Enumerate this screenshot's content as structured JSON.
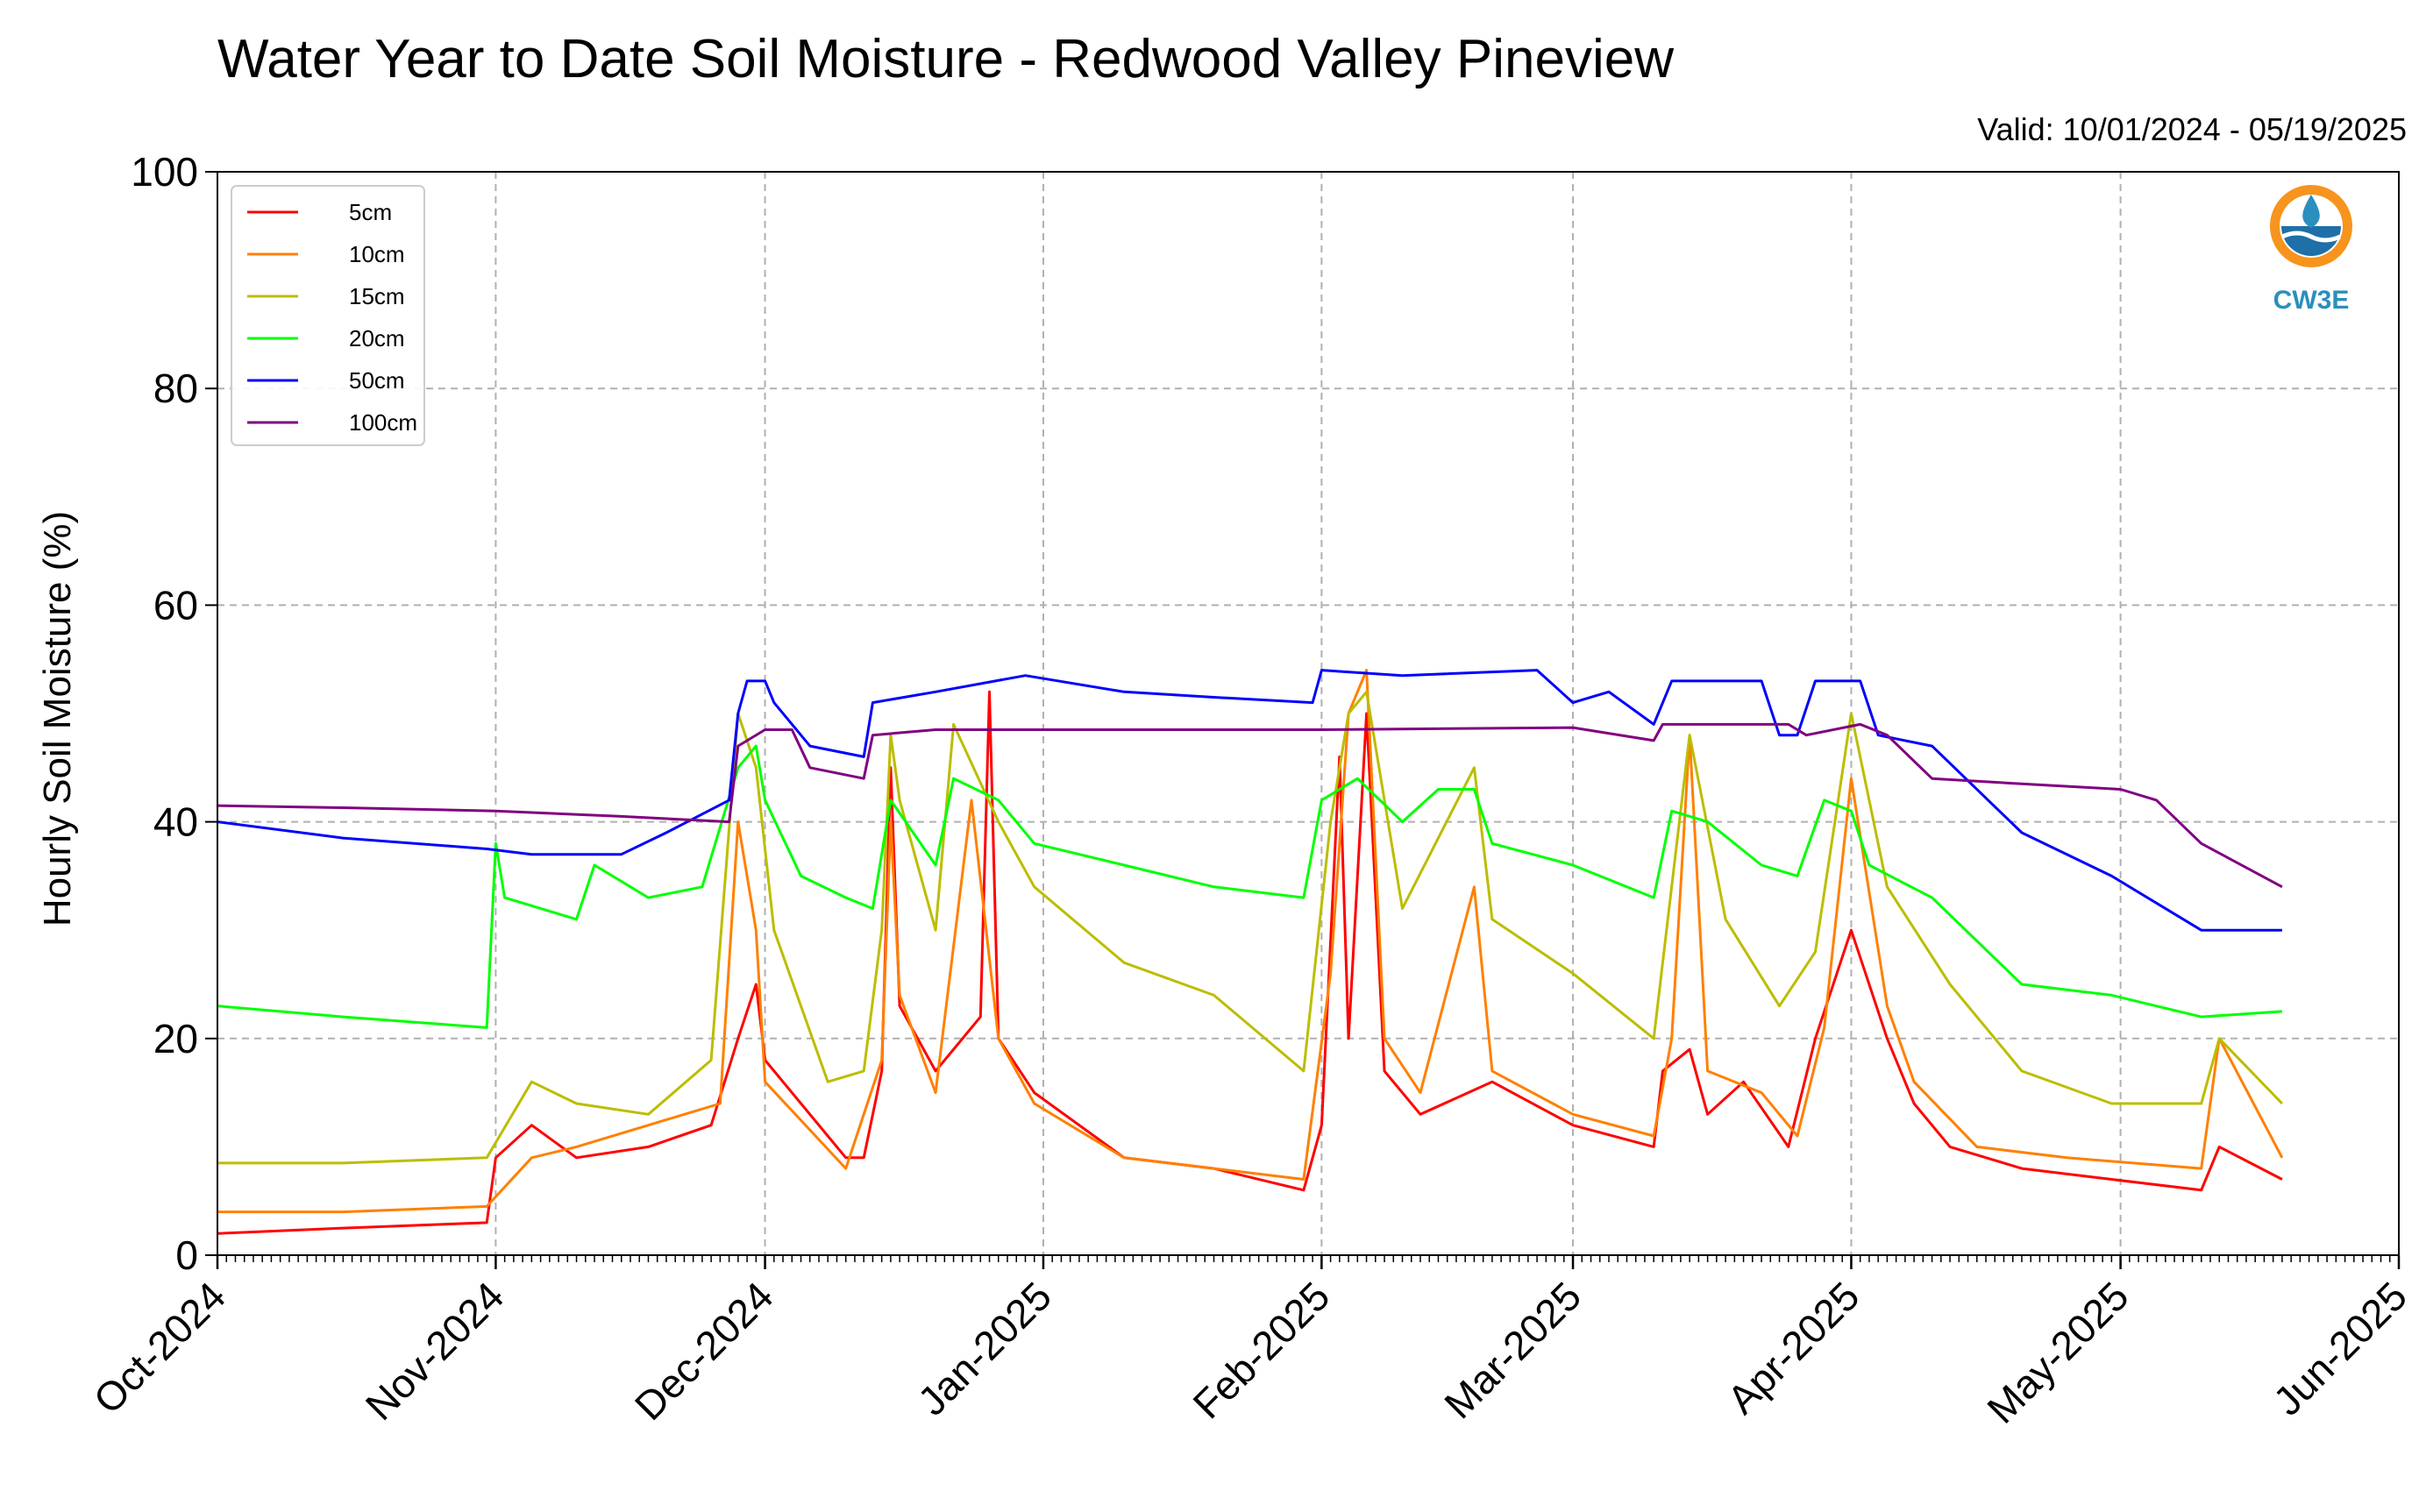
{
  "chart_data": {
    "type": "line",
    "title": "Water Year to Date Soil Moisture - Redwood Valley Pineview",
    "subtitle": "Valid: 10/01/2024 - 05/19/2025",
    "ylabel": "Hourly Soil Moisture (%)",
    "xlabel": "",
    "ylim": [
      0,
      100
    ],
    "yticks": [
      0,
      20,
      40,
      60,
      80,
      100
    ],
    "xlim": [
      "2024-10-01",
      "2025-06-01"
    ],
    "xticks": [
      {
        "date": "2024-10-01",
        "label": "Oct-2024"
      },
      {
        "date": "2024-11-01",
        "label": "Nov-2024"
      },
      {
        "date": "2024-12-01",
        "label": "Dec-2024"
      },
      {
        "date": "2025-01-01",
        "label": "Jan-2025"
      },
      {
        "date": "2025-02-01",
        "label": "Feb-2025"
      },
      {
        "date": "2025-03-01",
        "label": "Mar-2025"
      },
      {
        "date": "2025-04-01",
        "label": "Apr-2025"
      },
      {
        "date": "2025-05-01",
        "label": "May-2025"
      },
      {
        "date": "2025-06-01",
        "label": "Jun-2025"
      }
    ],
    "grid": true,
    "legend_position": "top-left",
    "series": [
      {
        "name": "5cm",
        "color": "#ff0000",
        "points": [
          [
            "2024-10-01",
            2
          ],
          [
            "2024-10-15",
            2.5
          ],
          [
            "2024-10-31",
            3
          ],
          [
            "2024-11-01",
            9
          ],
          [
            "2024-11-05",
            12
          ],
          [
            "2024-11-10",
            9
          ],
          [
            "2024-11-18",
            10
          ],
          [
            "2024-11-25",
            12
          ],
          [
            "2024-11-28",
            20
          ],
          [
            "2024-11-30",
            25
          ],
          [
            "2024-12-01",
            18
          ],
          [
            "2024-12-10",
            9
          ],
          [
            "2024-12-12",
            9
          ],
          [
            "2024-12-14",
            17
          ],
          [
            "2024-12-15",
            45
          ],
          [
            "2024-12-16",
            23
          ],
          [
            "2024-12-20",
            17
          ],
          [
            "2024-12-25",
            22
          ],
          [
            "2024-12-26",
            52
          ],
          [
            "2024-12-27",
            20
          ],
          [
            "2024-12-31",
            15
          ],
          [
            "2025-01-10",
            9
          ],
          [
            "2025-01-20",
            8
          ],
          [
            "2025-01-30",
            6
          ],
          [
            "2025-02-01",
            12
          ],
          [
            "2025-02-03",
            46
          ],
          [
            "2025-02-04",
            20
          ],
          [
            "2025-02-06",
            50
          ],
          [
            "2025-02-08",
            17
          ],
          [
            "2025-02-12",
            13
          ],
          [
            "2025-02-20",
            16
          ],
          [
            "2025-03-01",
            12
          ],
          [
            "2025-03-10",
            10
          ],
          [
            "2025-03-11",
            17
          ],
          [
            "2025-03-14",
            19
          ],
          [
            "2025-03-16",
            13
          ],
          [
            "2025-03-20",
            16
          ],
          [
            "2025-03-25",
            10
          ],
          [
            "2025-03-28",
            20
          ],
          [
            "2025-04-01",
            30
          ],
          [
            "2025-04-05",
            20
          ],
          [
            "2025-04-08",
            14
          ],
          [
            "2025-04-12",
            10
          ],
          [
            "2025-04-20",
            8
          ],
          [
            "2025-04-30",
            7
          ],
          [
            "2025-05-10",
            6
          ],
          [
            "2025-05-12",
            10
          ],
          [
            "2025-05-19",
            7
          ]
        ]
      },
      {
        "name": "10cm",
        "color": "#ff8000",
        "points": [
          [
            "2024-10-01",
            4
          ],
          [
            "2024-10-15",
            4
          ],
          [
            "2024-10-31",
            4.5
          ],
          [
            "2024-11-05",
            9
          ],
          [
            "2024-11-10",
            10
          ],
          [
            "2024-11-18",
            12
          ],
          [
            "2024-11-26",
            14
          ],
          [
            "2024-11-28",
            40
          ],
          [
            "2024-11-30",
            30
          ],
          [
            "2024-12-01",
            16
          ],
          [
            "2024-12-10",
            8
          ],
          [
            "2024-12-14",
            18
          ],
          [
            "2024-12-15",
            40
          ],
          [
            "2024-12-16",
            24
          ],
          [
            "2024-12-20",
            15
          ],
          [
            "2024-12-24",
            42
          ],
          [
            "2024-12-27",
            20
          ],
          [
            "2024-12-31",
            14
          ],
          [
            "2025-01-10",
            9
          ],
          [
            "2025-01-20",
            8
          ],
          [
            "2025-01-30",
            7
          ],
          [
            "2025-02-02",
            26
          ],
          [
            "2025-02-04",
            50
          ],
          [
            "2025-02-06",
            54
          ],
          [
            "2025-02-08",
            20
          ],
          [
            "2025-02-12",
            15
          ],
          [
            "2025-02-18",
            34
          ],
          [
            "2025-02-20",
            17
          ],
          [
            "2025-03-01",
            13
          ],
          [
            "2025-03-10",
            11
          ],
          [
            "2025-03-12",
            20
          ],
          [
            "2025-03-14",
            48
          ],
          [
            "2025-03-16",
            17
          ],
          [
            "2025-03-22",
            15
          ],
          [
            "2025-03-26",
            11
          ],
          [
            "2025-03-29",
            21
          ],
          [
            "2025-04-01",
            44
          ],
          [
            "2025-04-05",
            23
          ],
          [
            "2025-04-08",
            16
          ],
          [
            "2025-04-15",
            10
          ],
          [
            "2025-04-25",
            9
          ],
          [
            "2025-05-10",
            8
          ],
          [
            "2025-05-12",
            20
          ],
          [
            "2025-05-19",
            9
          ]
        ]
      },
      {
        "name": "15cm",
        "color": "#bcbd00",
        "points": [
          [
            "2024-10-01",
            8.5
          ],
          [
            "2024-10-15",
            8.5
          ],
          [
            "2024-10-31",
            9
          ],
          [
            "2024-11-05",
            16
          ],
          [
            "2024-11-10",
            14
          ],
          [
            "2024-11-18",
            13
          ],
          [
            "2024-11-25",
            18
          ],
          [
            "2024-11-28",
            50
          ],
          [
            "2024-11-30",
            45
          ],
          [
            "2024-12-02",
            30
          ],
          [
            "2024-12-08",
            16
          ],
          [
            "2024-12-12",
            17
          ],
          [
            "2024-12-14",
            30
          ],
          [
            "2024-12-15",
            48
          ],
          [
            "2024-12-16",
            42
          ],
          [
            "2024-12-20",
            30
          ],
          [
            "2024-12-22",
            49
          ],
          [
            "2024-12-27",
            40
          ],
          [
            "2024-12-31",
            34
          ],
          [
            "2025-01-10",
            27
          ],
          [
            "2025-01-20",
            24
          ],
          [
            "2025-01-30",
            17
          ],
          [
            "2025-02-02",
            40
          ],
          [
            "2025-02-04",
            50
          ],
          [
            "2025-02-06",
            52
          ],
          [
            "2025-02-10",
            32
          ],
          [
            "2025-02-18",
            45
          ],
          [
            "2025-02-20",
            31
          ],
          [
            "2025-03-01",
            26
          ],
          [
            "2025-03-10",
            20
          ],
          [
            "2025-03-11",
            27
          ],
          [
            "2025-03-14",
            48
          ],
          [
            "2025-03-18",
            31
          ],
          [
            "2025-03-24",
            23
          ],
          [
            "2025-03-28",
            28
          ],
          [
            "2025-04-01",
            50
          ],
          [
            "2025-04-05",
            34
          ],
          [
            "2025-04-12",
            25
          ],
          [
            "2025-04-20",
            17
          ],
          [
            "2025-04-30",
            14
          ],
          [
            "2025-05-10",
            14
          ],
          [
            "2025-05-12",
            20
          ],
          [
            "2025-05-19",
            14
          ]
        ]
      },
      {
        "name": "20cm",
        "color": "#00ff00",
        "points": [
          [
            "2024-10-01",
            23
          ],
          [
            "2024-10-15",
            22
          ],
          [
            "2024-10-31",
            21
          ],
          [
            "2024-11-01",
            38
          ],
          [
            "2024-11-02",
            33
          ],
          [
            "2024-11-10",
            31
          ],
          [
            "2024-11-12",
            36
          ],
          [
            "2024-11-18",
            33
          ],
          [
            "2024-11-24",
            34
          ],
          [
            "2024-11-28",
            45
          ],
          [
            "2024-11-30",
            47
          ],
          [
            "2024-12-01",
            42
          ],
          [
            "2024-12-05",
            35
          ],
          [
            "2024-12-10",
            33
          ],
          [
            "2024-12-13",
            32
          ],
          [
            "2024-12-15",
            42
          ],
          [
            "2024-12-20",
            36
          ],
          [
            "2024-12-22",
            44
          ],
          [
            "2024-12-27",
            42
          ],
          [
            "2024-12-31",
            38
          ],
          [
            "2025-01-10",
            36
          ],
          [
            "2025-01-20",
            34
          ],
          [
            "2025-01-30",
            33
          ],
          [
            "2025-02-01",
            42
          ],
          [
            "2025-02-05",
            44
          ],
          [
            "2025-02-10",
            40
          ],
          [
            "2025-02-14",
            43
          ],
          [
            "2025-02-18",
            43
          ],
          [
            "2025-02-20",
            38
          ],
          [
            "2025-03-01",
            36
          ],
          [
            "2025-03-10",
            33
          ],
          [
            "2025-03-12",
            41
          ],
          [
            "2025-03-16",
            40
          ],
          [
            "2025-03-22",
            36
          ],
          [
            "2025-03-26",
            35
          ],
          [
            "2025-03-29",
            42
          ],
          [
            "2025-04-01",
            41
          ],
          [
            "2025-04-03",
            36
          ],
          [
            "2025-04-10",
            33
          ],
          [
            "2025-04-20",
            25
          ],
          [
            "2025-04-30",
            24
          ],
          [
            "2025-05-10",
            22
          ],
          [
            "2025-05-19",
            22.5
          ]
        ]
      },
      {
        "name": "50cm",
        "color": "#0000ff",
        "points": [
          [
            "2024-10-01",
            40
          ],
          [
            "2024-10-15",
            38.5
          ],
          [
            "2024-10-31",
            37.5
          ],
          [
            "2024-11-05",
            37
          ],
          [
            "2024-11-15",
            37
          ],
          [
            "2024-11-20",
            39
          ],
          [
            "2024-11-27",
            42
          ],
          [
            "2024-11-28",
            50
          ],
          [
            "2024-11-29",
            53
          ],
          [
            "2024-12-01",
            53
          ],
          [
            "2024-12-02",
            51
          ],
          [
            "2024-12-06",
            47
          ],
          [
            "2024-12-12",
            46
          ],
          [
            "2024-12-13",
            51
          ],
          [
            "2024-12-20",
            52
          ],
          [
            "2024-12-30",
            53.5
          ],
          [
            "2025-01-10",
            52
          ],
          [
            "2025-01-20",
            51.5
          ],
          [
            "2025-01-31",
            51
          ],
          [
            "2025-02-01",
            54
          ],
          [
            "2025-02-10",
            53.5
          ],
          [
            "2025-02-25",
            54
          ],
          [
            "2025-03-01",
            51
          ],
          [
            "2025-03-05",
            52
          ],
          [
            "2025-03-10",
            49
          ],
          [
            "2025-03-12",
            53
          ],
          [
            "2025-03-22",
            53
          ],
          [
            "2025-03-24",
            48
          ],
          [
            "2025-03-26",
            48
          ],
          [
            "2025-03-28",
            53
          ],
          [
            "2025-04-02",
            53
          ],
          [
            "2025-04-04",
            48
          ],
          [
            "2025-04-10",
            47
          ],
          [
            "2025-04-20",
            39
          ],
          [
            "2025-04-30",
            35
          ],
          [
            "2025-05-10",
            30
          ],
          [
            "2025-05-19",
            30
          ]
        ]
      },
      {
        "name": "100cm",
        "color": "#800080",
        "points": [
          [
            "2024-10-01",
            41.5
          ],
          [
            "2024-10-15",
            41.3
          ],
          [
            "2024-11-01",
            41
          ],
          [
            "2024-11-15",
            40.5
          ],
          [
            "2024-11-27",
            40
          ],
          [
            "2024-11-28",
            47
          ],
          [
            "2024-12-01",
            48.5
          ],
          [
            "2024-12-04",
            48.5
          ],
          [
            "2024-12-06",
            45
          ],
          [
            "2024-12-12",
            44
          ],
          [
            "2024-12-13",
            48
          ],
          [
            "2024-12-20",
            48.5
          ],
          [
            "2025-01-10",
            48.5
          ],
          [
            "2025-02-01",
            48.5
          ],
          [
            "2025-03-01",
            48.7
          ],
          [
            "2025-03-10",
            47.5
          ],
          [
            "2025-03-11",
            49
          ],
          [
            "2025-03-25",
            49
          ],
          [
            "2025-03-27",
            48
          ],
          [
            "2025-04-02",
            49
          ],
          [
            "2025-04-05",
            48
          ],
          [
            "2025-04-10",
            44
          ],
          [
            "2025-04-20",
            43.5
          ],
          [
            "2025-05-01",
            43
          ],
          [
            "2025-05-05",
            42
          ],
          [
            "2025-05-10",
            38
          ],
          [
            "2025-05-19",
            34
          ]
        ]
      }
    ]
  },
  "logo": {
    "text": "CW3E"
  }
}
